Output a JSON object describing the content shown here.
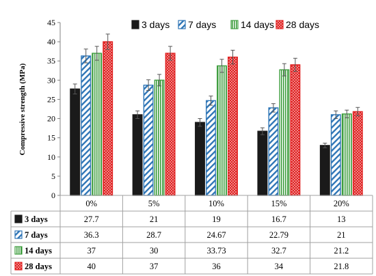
{
  "chart_data": {
    "type": "bar",
    "title": "",
    "ylabel": "Compressive strength (MPa)",
    "xlabel": "",
    "ylim": [
      0,
      45
    ],
    "yticks": [
      0,
      5,
      10,
      15,
      20,
      25,
      30,
      35,
      40,
      45
    ],
    "grid": false,
    "legend_position": "top",
    "error_bars": true,
    "categories": [
      "0%",
      "5%",
      "10%",
      "15%",
      "20%"
    ],
    "series": [
      {
        "name": "3 days",
        "color": "#1a1a1a",
        "pattern": "solid",
        "values": [
          27.7,
          21,
          19,
          16.7,
          13
        ],
        "labels": [
          "27.7",
          "21",
          "19",
          "16.7",
          "13"
        ],
        "errors": [
          1.3,
          1.0,
          1.0,
          0.9,
          0.6
        ]
      },
      {
        "name": "7 days",
        "color": "#2e75b6",
        "pattern": "diagonal",
        "values": [
          36.3,
          28.7,
          24.67,
          22.79,
          21
        ],
        "labels": [
          "36.3",
          "28.7",
          "24.67",
          "22.79",
          "21"
        ],
        "errors": [
          1.8,
          1.4,
          1.2,
          1.1,
          1.0
        ]
      },
      {
        "name": "14 days",
        "color": "#3f9e3f",
        "pattern": "vertical",
        "values": [
          37,
          30,
          33.73,
          32.7,
          21.2
        ],
        "labels": [
          "37",
          "30",
          "33.73",
          "32.7",
          "21.2"
        ],
        "errors": [
          1.8,
          1.5,
          1.7,
          1.6,
          1.0
        ]
      },
      {
        "name": "28 days",
        "color": "#e02020",
        "pattern": "dots",
        "values": [
          40,
          37,
          36,
          34,
          21.8
        ],
        "labels": [
          "40",
          "37",
          "36",
          "34",
          "21.8"
        ],
        "errors": [
          2.0,
          1.8,
          1.8,
          1.7,
          1.1
        ]
      }
    ]
  }
}
